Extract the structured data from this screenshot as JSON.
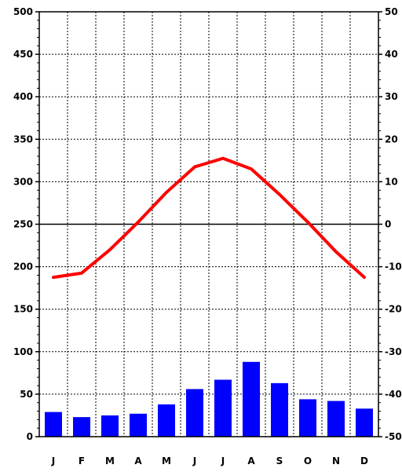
{
  "chart_data": {
    "type": "bar+line",
    "title": "",
    "categories": [
      "J",
      "F",
      "M",
      "A",
      "M",
      "J",
      "J",
      "A",
      "S",
      "O",
      "N",
      "D"
    ],
    "y_left": {
      "label": "",
      "range": [
        0,
        500
      ],
      "ticks": [
        0,
        50,
        100,
        150,
        200,
        250,
        300,
        350,
        400,
        450,
        500
      ]
    },
    "y_right": {
      "label": "",
      "range": [
        -50,
        50
      ],
      "ticks": [
        -50,
        -40,
        -30,
        -20,
        -10,
        0,
        10,
        20,
        30,
        40,
        50
      ]
    },
    "grid": true,
    "series": [
      {
        "type": "bar",
        "axis": "left",
        "color": "#0000ff",
        "values": [
          29,
          23,
          25,
          27,
          38,
          56,
          67,
          88,
          63,
          44,
          42,
          33
        ]
      },
      {
        "type": "line",
        "axis": "right",
        "color": "#ff0000",
        "values": [
          -12.5,
          -11.5,
          -6,
          0.5,
          7.5,
          13.5,
          15.5,
          13,
          7,
          0.5,
          -6.5,
          -12.5
        ]
      }
    ],
    "reference_line": {
      "axis": "right",
      "value": 0,
      "color": "#000000"
    }
  }
}
